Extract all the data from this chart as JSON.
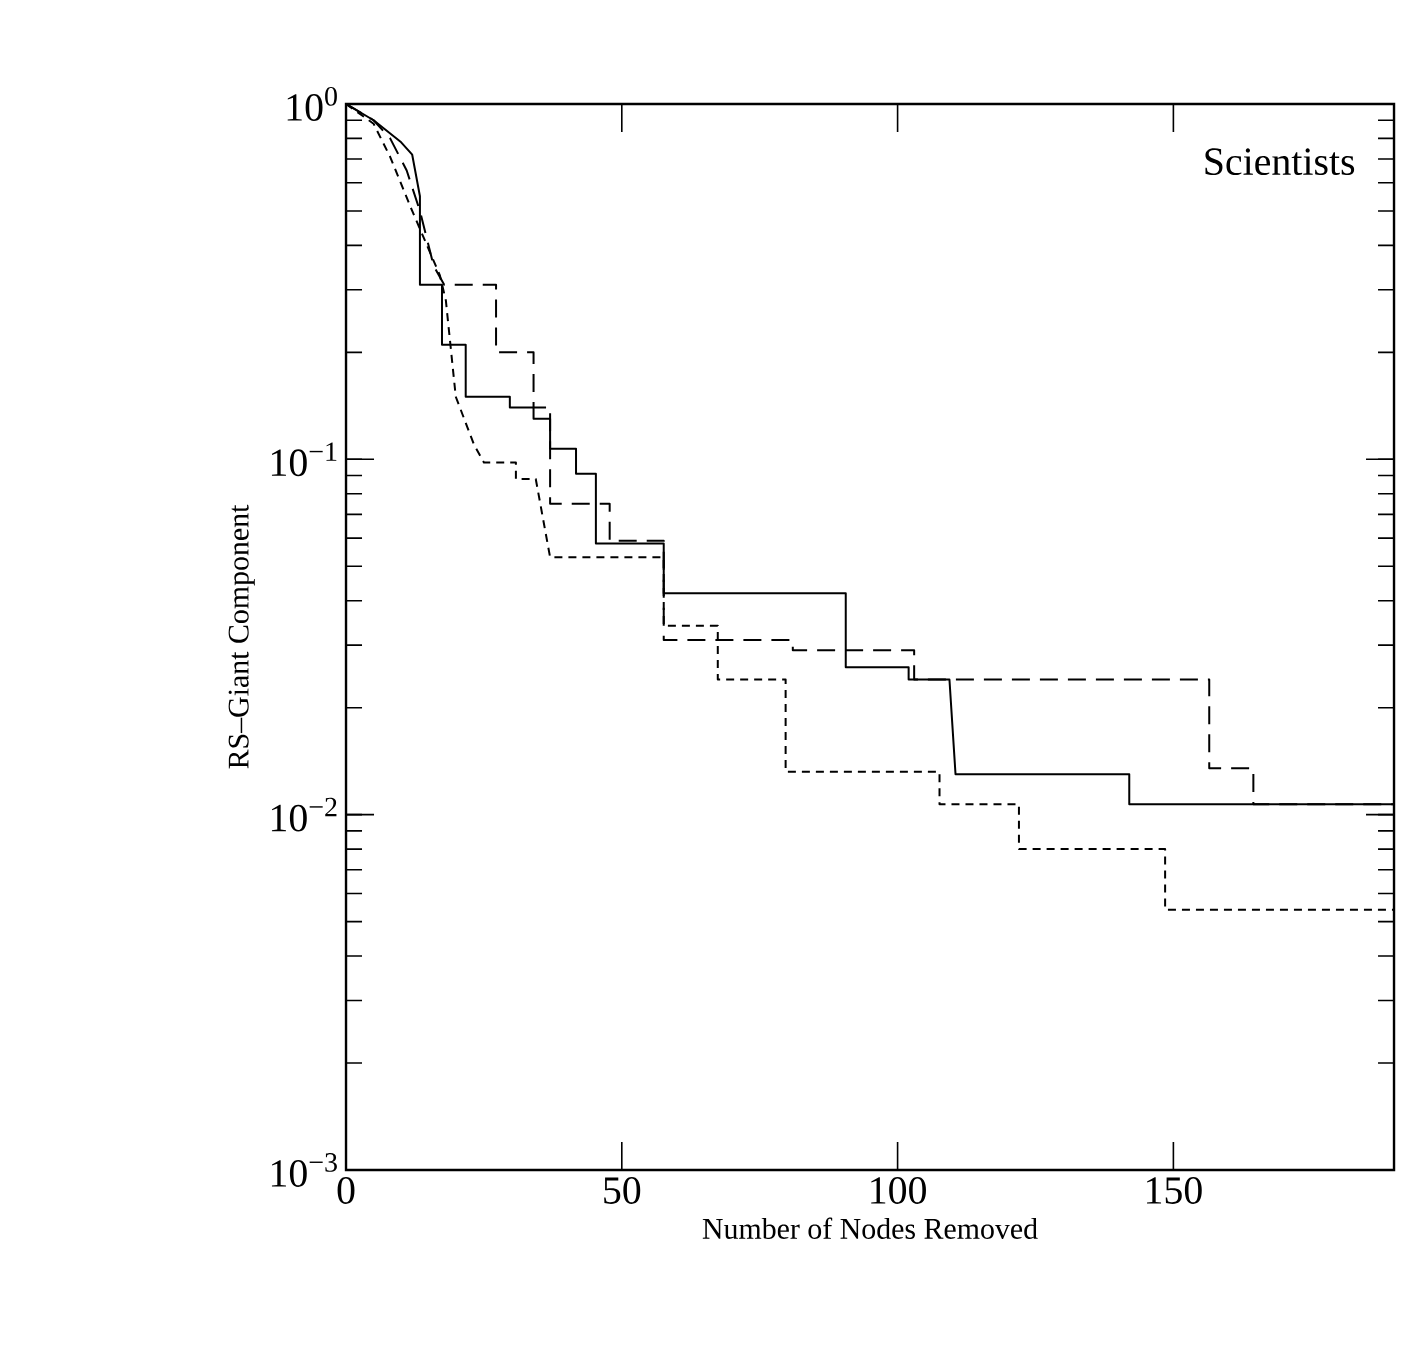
{
  "chart_data": {
    "type": "line",
    "xlabel": "Number of Nodes Removed",
    "ylabel": "RS–Giant Component",
    "annotations": [
      "Scientists"
    ],
    "log": "y",
    "xlim": [
      0,
      190
    ],
    "ylim": [
      0.001,
      1
    ],
    "xticks": [
      0,
      50,
      100,
      150
    ],
    "yticks": [
      {
        "value": 0.001,
        "label": "10$^{−3}$"
      },
      {
        "value": 0.01,
        "label": "10$^{−2}$"
      },
      {
        "value": 0.1,
        "label": "10$^{−1}$"
      },
      {
        "value": 1,
        "label": "10$^{0}$"
      }
    ],
    "grid": false,
    "marker": "none",
    "series": [
      {
        "color": "#000000",
        "line_style": "solid",
        "x": [
          0,
          5,
          10,
          12,
          13.4,
          13.4,
          17.4,
          17.4,
          21.7,
          21.7,
          29.7,
          29.7,
          34,
          34,
          37,
          37,
          41.7,
          41.7,
          45.3,
          45.3,
          57.6,
          57.6,
          90.6,
          90.6,
          102,
          102,
          109.4,
          110.5,
          142,
          142,
          190
        ],
        "values": [
          1,
          0.9,
          0.78,
          0.72,
          0.55,
          0.31,
          0.31,
          0.21,
          0.21,
          0.15,
          0.15,
          0.14,
          0.14,
          0.13,
          0.13,
          0.107,
          0.107,
          0.091,
          0.091,
          0.058,
          0.058,
          0.042,
          0.042,
          0.026,
          0.026,
          0.024,
          0.024,
          0.013,
          0.013,
          0.0107,
          0.0107
        ]
      },
      {
        "color": "#000000",
        "line_style": "dashed",
        "x": [
          0,
          5,
          8,
          11,
          13.4,
          15.9,
          17.8,
          27.2,
          27.2,
          34,
          34,
          37,
          37,
          47.8,
          47.8,
          57.6,
          57.6,
          81,
          81,
          103,
          103,
          156.5,
          156.5,
          164.5,
          164.5,
          190
        ],
        "values": [
          1,
          0.9,
          0.8,
          0.65,
          0.5,
          0.35,
          0.31,
          0.31,
          0.2,
          0.2,
          0.14,
          0.14,
          0.075,
          0.075,
          0.059,
          0.059,
          0.031,
          0.031,
          0.029,
          0.029,
          0.024,
          0.024,
          0.0135,
          0.0135,
          0.0107,
          0.0107
        ]
      },
      {
        "color": "#000000",
        "line_style": "dashed",
        "x": [
          0,
          5,
          8,
          12,
          17,
          18.1,
          19.9,
          23.2,
          25,
          30.8,
          30.8,
          34.4,
          37,
          57.6,
          57.6,
          67.4,
          67.4,
          79.7,
          79.7,
          107.6,
          107.6,
          122,
          122,
          148.5,
          148.5,
          190
        ],
        "values": [
          1,
          0.88,
          0.71,
          0.5,
          0.33,
          0.28,
          0.15,
          0.11,
          0.098,
          0.098,
          0.088,
          0.088,
          0.053,
          0.053,
          0.034,
          0.034,
          0.024,
          0.024,
          0.0132,
          0.0132,
          0.0107,
          0.0107,
          0.008,
          0.008,
          0.0054,
          0.0054
        ]
      }
    ]
  }
}
